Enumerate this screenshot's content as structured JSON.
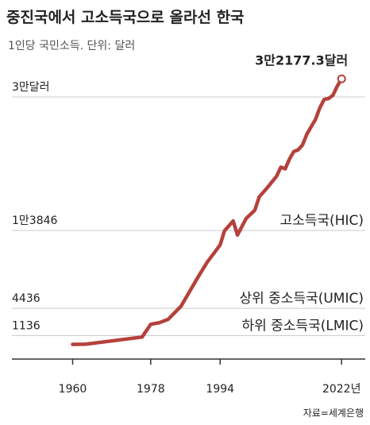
{
  "chart_data": {
    "type": "line",
    "title": "중진국에서 고소득국으로 올라선 한국",
    "subtitle": "1인당 국민소득. 단위: 달러",
    "source": "자료=세계은행",
    "x": [
      1960,
      1963,
      1976,
      1978,
      1980,
      1982,
      1985,
      1989,
      1991,
      1994,
      1995,
      1997,
      1998,
      2000,
      2002,
      2003,
      2005,
      2007,
      2008,
      2009,
      2010,
      2011,
      2012,
      2013,
      2014,
      2016,
      2017,
      2018,
      2019,
      2020,
      2021,
      2022
    ],
    "series": [
      {
        "name": "1인당 국민소득",
        "color": "#b5413c",
        "values": [
          80,
          100,
          960,
          2500,
          2700,
          3100,
          4700,
          8300,
          10000,
          12100,
          13800,
          15000,
          13300,
          15300,
          16300,
          17900,
          19100,
          20400,
          21500,
          21300,
          22500,
          23400,
          23600,
          24200,
          25500,
          27300,
          28700,
          29700,
          29800,
          30200,
          31300,
          32177.3
        ],
        "value_labels": [
          null,
          null,
          null,
          null,
          null,
          null,
          null,
          null,
          null,
          null,
          null,
          null,
          null,
          null,
          null,
          null,
          null,
          null,
          null,
          null,
          null,
          null,
          null,
          null,
          null,
          null,
          null,
          null,
          null,
          null,
          null,
          "3만2177.3달러"
        ]
      }
    ],
    "xlim": [
      1946,
      2028
    ],
    "xticks": [
      1960,
      1978,
      1994,
      {
        "value": 2022,
        "label": "2022년"
      }
    ],
    "ylim": [
      -1700,
      33550
    ],
    "yticks": [
      {
        "value": 1136,
        "label": "1136",
        "note": "하위 중소득국(LMIC)"
      },
      {
        "value": 4436,
        "label": "4436",
        "note": "상위 중소득국(UMIC)"
      },
      {
        "value": 13846,
        "label": "1만3846",
        "note": "고소득국(HIC)"
      },
      {
        "value": 30000,
        "label": "3만달러"
      }
    ],
    "grid": true
  }
}
